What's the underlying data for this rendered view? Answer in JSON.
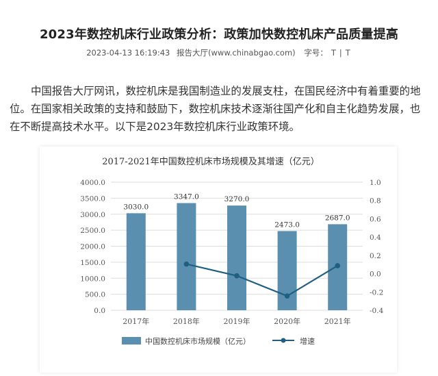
{
  "article": {
    "title": "2023年数控机床行业政策分析：政策加快数控机床产品质量提高",
    "datetime": "2023-04-13 16:19:43",
    "source": "报告大厅(www.chinabgao.com)",
    "font_size_label": "字号：",
    "font_size_options": [
      "T",
      "T"
    ],
    "font_size_sep": "|",
    "paragraph": "中国报告大厅网讯，数控机床是我国制造业的发展支柱，在国民经济中有着重要的地位。在国家相关政策的支持和鼓励下，数控机床技术逐渐往国产化和自主化趋势发展，也在不断提高技术水平。以下是2023年数控机床行业政策环境。"
  },
  "colors": {
    "bar": "#5b8fb0",
    "line": "#1e5f82",
    "axis_text": "#555555",
    "grid": "#dddddd"
  },
  "chart_data": {
    "type": "bar+line",
    "title": "2017-2021年中国数控机床市场规模及其增速（亿元）",
    "categories": [
      "2017年",
      "2018年",
      "2019年",
      "2020年",
      "2021年"
    ],
    "series": [
      {
        "name": "中国数控机床市场规模（亿元）",
        "type": "bar",
        "axis": "left",
        "values": [
          3030.0,
          3347.0,
          3270.0,
          2473.0,
          2687.0
        ],
        "labels": [
          "3030.0",
          "3347.0",
          "3270.0",
          "2473.0",
          "2687.0"
        ]
      },
      {
        "name": "增速",
        "type": "line",
        "axis": "right",
        "values": [
          null,
          0.105,
          -0.023,
          -0.244,
          0.087
        ]
      }
    ],
    "ylim_left": [
      0,
      4000
    ],
    "yticks_left": [
      "0.0",
      "500.0",
      "1000.0",
      "1500.0",
      "2000.0",
      "2500.0",
      "3000.0",
      "3500.0",
      "4000.0"
    ],
    "ylim_right": [
      -0.4,
      1.0
    ],
    "yticks_right": [
      "-0.4",
      "-0.2",
      "0.0",
      "0.2",
      "0.4",
      "0.6",
      "0.8",
      "1.0"
    ],
    "grid": true,
    "legend_position": "bottom"
  }
}
